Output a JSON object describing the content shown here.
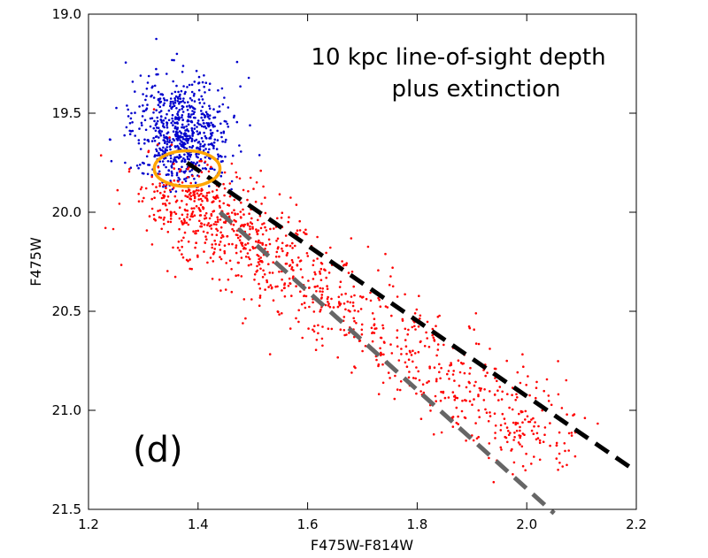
{
  "chart_data": {
    "type": "scatter",
    "title": "",
    "xlabel": "F475W-F814W",
    "ylabel": "F475W",
    "xlim": [
      1.2,
      2.2
    ],
    "ylim": [
      19.0,
      21.5
    ],
    "y_inverted": true,
    "grid": false,
    "x_ticks": [
      "1.2",
      "1.4",
      "1.6",
      "1.8",
      "2.0",
      "2.2"
    ],
    "y_ticks": [
      "19.0",
      "19.5",
      "20.0",
      "20.5",
      "21.0",
      "21.5"
    ],
    "annotation_lines": [
      "10 kpc line-of-sight depth",
      "plus extinction"
    ],
    "panel_label": "(d)",
    "series": [
      {
        "kind": "points",
        "color": "#0000cc",
        "center": [
          1.37,
          19.6
        ],
        "spread": [
          0.045,
          0.14
        ],
        "x_range": [
          1.22,
          1.56
        ],
        "y_range": [
          19.12,
          19.9
        ],
        "count": 700
      },
      {
        "kind": "points",
        "color": "#ff0000",
        "along": [
          [
            1.36,
            19.9
          ],
          [
            2.05,
            21.2
          ]
        ],
        "spread": [
          0.05,
          0.14
        ],
        "count": 1100
      },
      {
        "kind": "dashed-line",
        "color": "#000000",
        "points": [
          [
            1.38,
            19.75
          ],
          [
            2.19,
            21.29
          ]
        ]
      },
      {
        "kind": "dashed-line",
        "color": "#666666",
        "points": [
          [
            1.44,
            20.0
          ],
          [
            2.05,
            21.52
          ]
        ]
      },
      {
        "kind": "ellipse",
        "color": "#ffa500",
        "center": [
          1.38,
          19.78
        ],
        "radius": [
          0.06,
          0.09
        ]
      }
    ]
  }
}
